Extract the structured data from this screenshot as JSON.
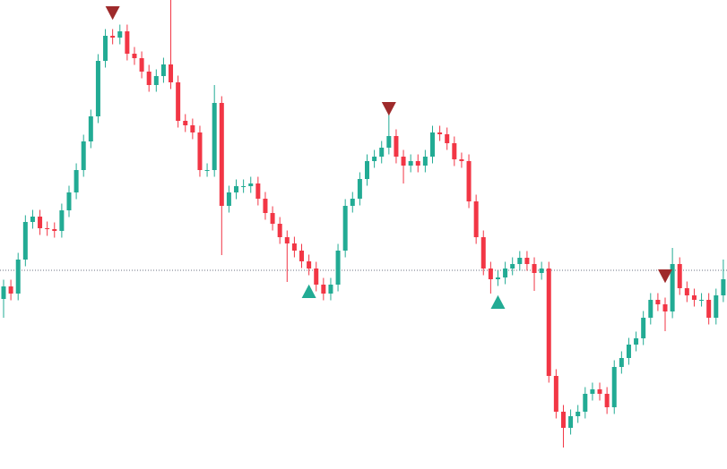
{
  "chart_data": {
    "type": "candlestick",
    "title": "",
    "xlabel": "",
    "ylabel": "",
    "ylim": [
      0,
      104.8
    ],
    "grid": false,
    "legend": "none",
    "colors": {
      "up": "#22ab94",
      "down": "#f23645",
      "sell_marker": "#9e2a2b",
      "buy_marker": "#22ab94",
      "reference_line": "#6b7280"
    },
    "reference_line": 44.4,
    "close": [
      40.8,
      39.2,
      46.8,
      55.2,
      56.4,
      53.8,
      53.6,
      53.2,
      57.8,
      61.8,
      66.8,
      73.2,
      78.8,
      91.2,
      96.8,
      96.4,
      97.8,
      92.8,
      91.8,
      88.8,
      85.8,
      87.8,
      90.4,
      86.4,
      77.8,
      76.8,
      75.2,
      66.8,
      66.8,
      81.8,
      58.8,
      61.8,
      63.2,
      63.2,
      63.8,
      60.4,
      57.2,
      54.8,
      51.8,
      50.4,
      48.8,
      46.4,
      44.8,
      41.2,
      39.2,
      41.2,
      48.8,
      58.8,
      60.4,
      64.8,
      68.8,
      69.8,
      71.8,
      74.4,
      69.8,
      67.8,
      68.8,
      67.8,
      69.8,
      75.2,
      74.8,
      72.8,
      69.2,
      68.8,
      59.8,
      51.8,
      44.8,
      42.4,
      42.8,
      44.8,
      45.8,
      47.2,
      45.8,
      43.8,
      44.8,
      20.8,
      12.8,
      9.2,
      11.8,
      12.8,
      16.8,
      17.8,
      16.8,
      13.8,
      22.8,
      24.8,
      27.8,
      29.2,
      33.8,
      37.8,
      36.8,
      35.2,
      45.8,
      40.4,
      38.8,
      37.8,
      37.8,
      33.8,
      38.8,
      42.4
    ],
    "open_first": 38.0,
    "high": [
      42.3,
      42.3,
      48.3,
      56.7,
      57.9,
      57.9,
      55.3,
      55.1,
      59.3,
      63.3,
      68.3,
      74.7,
      80.3,
      92.7,
      98.3,
      98.3,
      99.3,
      99.3,
      94.3,
      93.3,
      90.3,
      89.3,
      91.9,
      104.8,
      87.9,
      79.3,
      78.3,
      76.7,
      68.3,
      85.8,
      83.3,
      63.3,
      64.7,
      64.7,
      65.3,
      65.3,
      61.9,
      58.7,
      56.3,
      53.3,
      51.9,
      50.3,
      47.9,
      46.3,
      42.7,
      42.7,
      50.3,
      60.3,
      61.9,
      66.3,
      70.3,
      71.3,
      73.3,
      79.8,
      75.9,
      71.3,
      70.3,
      70.3,
      71.3,
      76.7,
      76.7,
      76.3,
      74.3,
      70.7,
      70.3,
      61.3,
      53.3,
      46.3,
      44.3,
      46.3,
      47.3,
      48.7,
      48.7,
      47.3,
      46.3,
      46.3,
      22.3,
      14.3,
      13.3,
      14.3,
      18.3,
      19.3,
      19.3,
      18.3,
      24.3,
      26.3,
      29.3,
      30.7,
      35.3,
      39.3,
      39.3,
      38.3,
      49.4,
      47.3,
      41.9,
      40.3,
      39.3,
      39.3,
      40.3,
      46.8
    ],
    "low": [
      33.8,
      37.7,
      37.7,
      45.3,
      53.7,
      52.3,
      52.1,
      51.7,
      51.7,
      56.3,
      60.3,
      65.3,
      71.7,
      77.3,
      89.7,
      94.9,
      94.9,
      91.3,
      90.3,
      87.3,
      84.3,
      84.3,
      86.3,
      84.9,
      76.3,
      75.3,
      73.7,
      65.3,
      65.3,
      65.3,
      47.8,
      57.3,
      60.3,
      61.7,
      61.7,
      58.9,
      55.7,
      53.3,
      50.3,
      41.8,
      47.3,
      44.9,
      43.3,
      39.7,
      37.7,
      37.7,
      39.7,
      47.3,
      57.3,
      58.9,
      63.3,
      67.3,
      68.3,
      70.3,
      68.3,
      63.8,
      66.3,
      66.3,
      66.3,
      68.3,
      73.3,
      71.3,
      67.7,
      67.3,
      58.3,
      50.3,
      43.3,
      39.2,
      40.9,
      41.3,
      43.3,
      44.3,
      44.3,
      39.8,
      42.3,
      19.3,
      11.3,
      4.8,
      7.7,
      10.3,
      11.3,
      15.3,
      15.3,
      12.3,
      12.3,
      21.3,
      23.3,
      26.3,
      27.7,
      32.3,
      35.3,
      30.8,
      33.7,
      38.9,
      37.3,
      36.3,
      36.3,
      32.3,
      32.3,
      37.3
    ],
    "markers": [
      {
        "type": "sell",
        "shape": "triangle-down",
        "candle": 15,
        "price": 101.8
      },
      {
        "type": "buy",
        "shape": "triangle-up",
        "candle": 42,
        "price": 39.8
      },
      {
        "type": "sell",
        "shape": "triangle-down",
        "candle": 53,
        "price": 80.4
      },
      {
        "type": "buy",
        "shape": "triangle-up",
        "candle": 68,
        "price": 37.4
      },
      {
        "type": "sell",
        "shape": "triangle-down",
        "candle": 91,
        "price": 43.0
      }
    ]
  }
}
